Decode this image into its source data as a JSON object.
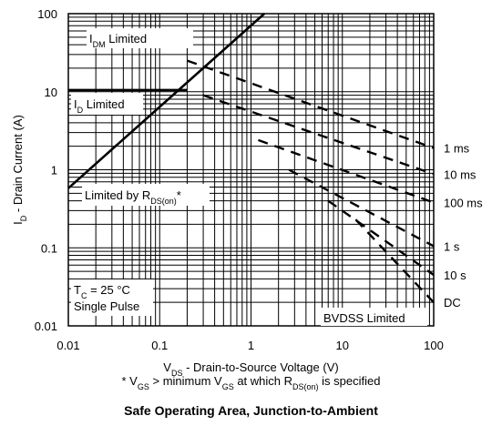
{
  "chart_data": {
    "type": "line",
    "title": "Safe Operating Area, Junction-to-Ambient",
    "xlabel": {
      "pre": "V",
      "sub": "DS",
      "post": " - Drain-to-Source Voltage (V)"
    },
    "ylabel": {
      "pre": "I",
      "sub": "D",
      "post": " - Drain Current (A)"
    },
    "footnote": [
      {
        "t": "* V",
        "sub": false
      },
      {
        "t": "GS",
        "sub": true
      },
      {
        "t": " > minimum V",
        "sub": false
      },
      {
        "t": "GS",
        "sub": true
      },
      {
        "t": " at which R",
        "sub": false
      },
      {
        "t": "DS(on)",
        "sub": true
      },
      {
        "t": " is specified",
        "sub": false
      }
    ],
    "xscale": "log",
    "yscale": "log",
    "xlim": [
      0.01,
      100
    ],
    "ylim": [
      0.01,
      100
    ],
    "x_ticks": [
      "0.01",
      "0.1",
      "1",
      "10",
      "100"
    ],
    "y_ticks": [
      "0.01",
      "0.1",
      "1",
      "10",
      "100"
    ],
    "grid": true,
    "annotations": {
      "idm": {
        "pre": "I",
        "sub": "DM",
        "post": " Limited"
      },
      "id": {
        "pre": "I",
        "sub": "D",
        "post": " Limited"
      },
      "rds": {
        "pre": "Limited by R",
        "sub": "DS(on)",
        "post": "*"
      },
      "tc": {
        "pre": "T",
        "sub": "C",
        "post": " = 25 °C"
      },
      "pulse": "Single Pulse",
      "bvdss": "BVDSS Limited"
    },
    "series": [
      {
        "name": "1 ms",
        "dashed": true,
        "points": [
          [
            0.2,
            25
          ],
          [
            100,
            1.9
          ]
        ]
      },
      {
        "name": "10 ms",
        "dashed": true,
        "points": [
          [
            0.3,
            9
          ],
          [
            100,
            0.88
          ]
        ]
      },
      {
        "name": "100 ms",
        "dashed": true,
        "points": [
          [
            1.2,
            2.4
          ],
          [
            100,
            0.38
          ]
        ]
      },
      {
        "name": "1 s",
        "dashed": true,
        "points": [
          [
            2.6,
            1.0
          ],
          [
            100,
            0.105
          ]
        ]
      },
      {
        "name": "10 s",
        "dashed": true,
        "points": [
          [
            7,
            0.4
          ],
          [
            100,
            0.045
          ]
        ]
      },
      {
        "name": "DC",
        "dashed": true,
        "points": [
          [
            14,
            0.23
          ],
          [
            100,
            0.02
          ]
        ]
      },
      {
        "name": "",
        "dashed": false,
        "points": [
          [
            0.01,
            0.58
          ],
          [
            1.4,
            100
          ]
        ]
      },
      {
        "name": "",
        "dashed": false,
        "points": [
          [
            0.01,
            10.5
          ],
          [
            0.2,
            10.5
          ]
        ]
      }
    ]
  }
}
